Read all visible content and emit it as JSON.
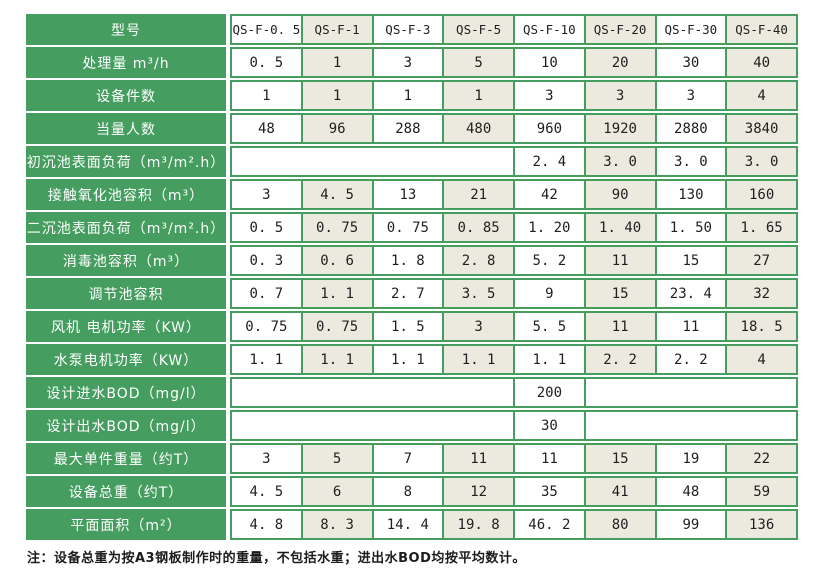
{
  "colors": {
    "table_green": "#459e60",
    "column_beige": "#eceade",
    "cell_white": "#ffffff",
    "label_text": "#ffffff",
    "value_text": "#1f1f1f"
  },
  "table": {
    "header": {
      "label": "型号",
      "models": [
        "QS-F-0. 5",
        "QS-F-1",
        "QS-F-3",
        "QS-F-5",
        "QS-F-10",
        "QS-F-20",
        "QS-F-30",
        "QS-F-40"
      ]
    },
    "rows": [
      {
        "label": "处理量 m³/h",
        "cells": [
          "0. 5",
          "1",
          "3",
          "5",
          "10",
          "20",
          "30",
          "40"
        ]
      },
      {
        "label": "设备件数",
        "cells": [
          "1",
          "1",
          "1",
          "1",
          "3",
          "3",
          "3",
          "4"
        ]
      },
      {
        "label": "当量人数",
        "cells": [
          "48",
          "96",
          "288",
          "480",
          "960",
          "1920",
          "2880",
          "3840"
        ]
      },
      {
        "label": "初沉池表面负荷（m³/m².h）",
        "cells": [
          {
            "span": 4,
            "text": ""
          },
          "2. 4",
          "3. 0",
          "3. 0",
          "3. 0"
        ]
      },
      {
        "label": "接触氧化池容积（m³）",
        "cells": [
          "3",
          "4. 5",
          "13",
          "21",
          "42",
          "90",
          "130",
          "160"
        ]
      },
      {
        "label": "二沉池表面负荷（m³/m².h）",
        "cells": [
          "0. 5",
          "0. 75",
          "0. 75",
          "0. 85",
          "1. 20",
          "1. 40",
          "1. 50",
          "1. 65"
        ]
      },
      {
        "label": "消毒池容积（m³）",
        "cells": [
          "0. 3",
          "0. 6",
          "1. 8",
          "2. 8",
          "5. 2",
          "11",
          "15",
          "27"
        ]
      },
      {
        "label": "调节池容积",
        "cells": [
          "0. 7",
          "1. 1",
          "2. 7",
          "3. 5",
          "9",
          "15",
          "23. 4",
          "32"
        ]
      },
      {
        "label": "风机 电机功率（KW）",
        "cells": [
          "0. 75",
          "0. 75",
          "1. 5",
          "3",
          "5. 5",
          "11",
          "11",
          "18. 5"
        ]
      },
      {
        "label": "水泵电机功率（KW）",
        "cells": [
          "1. 1",
          "1. 1",
          "1. 1",
          "1. 1",
          "1. 1",
          "2. 2",
          "2. 2",
          "4"
        ]
      },
      {
        "label": "设计进水BOD（mg/l）",
        "cells": [
          {
            "span": 4,
            "text": ""
          },
          "200",
          {
            "span": 3,
            "text": ""
          }
        ]
      },
      {
        "label": "设计出水BOD（mg/l）",
        "cells": [
          {
            "span": 4,
            "text": ""
          },
          "30",
          {
            "span": 3,
            "text": ""
          }
        ]
      },
      {
        "label": "最大单件重量（约T）",
        "cells": [
          "3",
          "5",
          "7",
          "11",
          "11",
          "15",
          "19",
          "22"
        ]
      },
      {
        "label": "设备总重（约T）",
        "cells": [
          "4. 5",
          "6",
          "8",
          "12",
          "35",
          "41",
          "48",
          "59"
        ]
      },
      {
        "label": "平面面积（m²）",
        "cells": [
          "4. 8",
          "8. 3",
          "14. 4",
          "19. 8",
          "46. 2",
          "80",
          "99",
          "136"
        ]
      }
    ]
  },
  "footnote": "注：设备总重为按A3钢板制作时的重量，不包括水重；进出水BOD均按平均数计。"
}
